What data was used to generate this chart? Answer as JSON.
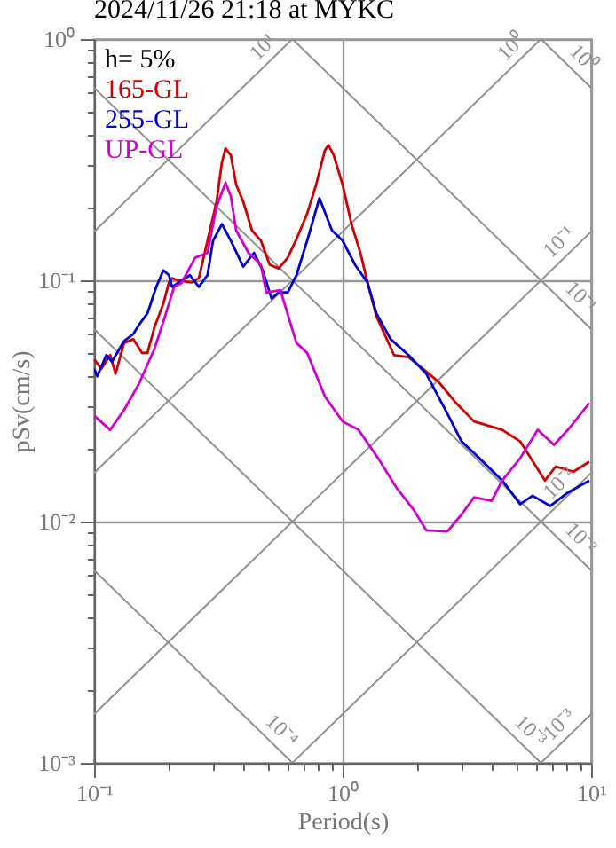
{
  "chart_data": {
    "type": "line",
    "title": "2024/11/26 21:18 at MYKC",
    "xlabel": "Period(s)",
    "ylabel": "pSv(cm/s)",
    "log": "xy",
    "grid": true,
    "xlim": [
      0.1,
      10
    ],
    "ylim": [
      0.001,
      1
    ],
    "xticks": [
      {
        "value": 0.1,
        "label": "10⁻¹"
      },
      {
        "value": 0.2,
        "label": null
      },
      {
        "value": 0.3,
        "label": null
      },
      {
        "value": 0.4,
        "label": null
      },
      {
        "value": 0.5,
        "label": null
      },
      {
        "value": 0.6,
        "label": null
      },
      {
        "value": 0.7,
        "label": null
      },
      {
        "value": 0.8,
        "label": null
      },
      {
        "value": 0.9,
        "label": null
      },
      {
        "value": 1,
        "label": "10⁰"
      },
      {
        "value": 2,
        "label": null
      },
      {
        "value": 3,
        "label": null
      },
      {
        "value": 4,
        "label": null
      },
      {
        "value": 5,
        "label": null
      },
      {
        "value": 6,
        "label": null
      },
      {
        "value": 7,
        "label": null
      },
      {
        "value": 8,
        "label": null
      },
      {
        "value": 9,
        "label": null
      },
      {
        "value": 10,
        "label": "10¹"
      }
    ],
    "yticks": [
      {
        "value": 0.001,
        "label": "10⁻³"
      },
      {
        "value": 0.002,
        "label": null
      },
      {
        "value": 0.003,
        "label": null
      },
      {
        "value": 0.004,
        "label": null
      },
      {
        "value": 0.005,
        "label": null
      },
      {
        "value": 0.006,
        "label": null
      },
      {
        "value": 0.007,
        "label": null
      },
      {
        "value": 0.008,
        "label": null
      },
      {
        "value": 0.009,
        "label": null
      },
      {
        "value": 0.01,
        "label": "10⁻²"
      },
      {
        "value": 0.02,
        "label": null
      },
      {
        "value": 0.03,
        "label": null
      },
      {
        "value": 0.04,
        "label": null
      },
      {
        "value": 0.05,
        "label": null
      },
      {
        "value": 0.06,
        "label": null
      },
      {
        "value": 0.07,
        "label": null
      },
      {
        "value": 0.08,
        "label": null
      },
      {
        "value": 0.09,
        "label": null
      },
      {
        "value": 0.1,
        "label": "10⁻¹"
      },
      {
        "value": 0.2,
        "label": null
      },
      {
        "value": 0.3,
        "label": null
      },
      {
        "value": 0.4,
        "label": null
      },
      {
        "value": 0.5,
        "label": null
      },
      {
        "value": 0.6,
        "label": null
      },
      {
        "value": 0.7,
        "label": null
      },
      {
        "value": 0.8,
        "label": null
      },
      {
        "value": 0.9,
        "label": null
      },
      {
        "value": 1,
        "label": "10⁰"
      }
    ],
    "series": [
      {
        "type": "line",
        "name": "10¹",
        "color": "#909090",
        "x": [
          0.1,
          0.628
        ],
        "values": [
          0.159,
          1
        ]
      },
      {
        "type": "line",
        "name": "10⁰",
        "color": "#909090",
        "x": [
          0.1,
          6.28
        ],
        "values": [
          0.0159,
          1
        ]
      },
      {
        "type": "line",
        "name": "10⁻¹",
        "color": "#909090",
        "x": [
          0.1,
          10
        ],
        "values": [
          0.00159,
          0.159
        ]
      },
      {
        "type": "line",
        "name": "10⁻²",
        "color": "#909090",
        "x": [
          0.628,
          10
        ],
        "values": [
          0.001,
          0.0159
        ]
      },
      {
        "type": "line",
        "name": "10⁻³",
        "color": "#909090",
        "x": [
          6.28,
          10
        ],
        "values": [
          0.001,
          0.00159
        ]
      },
      {
        "type": "line",
        "name": "10⁰",
        "color": "#909090",
        "x": [
          6.28,
          10
        ],
        "values": [
          1,
          0.628
        ]
      },
      {
        "type": "line",
        "name": "10⁻¹",
        "color": "#909090",
        "x": [
          0.628,
          10
        ],
        "values": [
          1,
          0.0628
        ]
      },
      {
        "type": "line",
        "name": "10⁻²",
        "color": "#909090",
        "x": [
          0.1,
          10
        ],
        "values": [
          0.628,
          0.00628
        ]
      },
      {
        "type": "line",
        "name": "10⁻³",
        "color": "#909090",
        "x": [
          0.1,
          6.28
        ],
        "values": [
          0.0628,
          0.001
        ]
      },
      {
        "type": "line",
        "name": "10⁻⁴",
        "color": "#909090",
        "x": [
          0.1,
          0.628
        ],
        "values": [
          0.00628,
          0.001
        ]
      },
      {
        "name": "165-GL",
        "color": "#d00000",
        "x": [
          0.1,
          0.107,
          0.116,
          0.122,
          0.132,
          0.144,
          0.156,
          0.164,
          0.175,
          0.19,
          0.2,
          0.206,
          0.217,
          0.247,
          0.264,
          0.286,
          0.311,
          0.327,
          0.338,
          0.355,
          0.373,
          0.398,
          0.432,
          0.469,
          0.509,
          0.553,
          0.601,
          0.652,
          0.72,
          0.782,
          0.849,
          0.877,
          0.921,
          1.0,
          1.086,
          1.179,
          1.259,
          1.367,
          1.61,
          1.84,
          2.1,
          2.43,
          2.86,
          3.38,
          4.39,
          5.18,
          6.52,
          7.2,
          8.49,
          9.84
        ],
        "values": [
          0.047,
          0.043,
          0.049,
          0.041,
          0.055,
          0.057,
          0.05,
          0.05,
          0.064,
          0.08,
          0.098,
          0.102,
          0.1,
          0.098,
          0.102,
          0.146,
          0.212,
          0.309,
          0.352,
          0.33,
          0.249,
          0.212,
          0.161,
          0.146,
          0.116,
          0.112,
          0.124,
          0.148,
          0.189,
          0.249,
          0.346,
          0.363,
          0.33,
          0.249,
          0.171,
          0.13,
          0.098,
          0.071,
          0.049,
          0.048,
          0.043,
          0.038,
          0.031,
          0.026,
          0.024,
          0.0215,
          0.0148,
          0.0169,
          0.0161,
          0.0177
        ]
      },
      {
        "name": "255-GL",
        "color": "#0000d0",
        "x": [
          0.1,
          0.103,
          0.112,
          0.118,
          0.132,
          0.144,
          0.151,
          0.164,
          0.178,
          0.19,
          0.2,
          0.206,
          0.243,
          0.264,
          0.286,
          0.301,
          0.327,
          0.355,
          0.398,
          0.44,
          0.477,
          0.518,
          0.553,
          0.601,
          0.652,
          0.72,
          0.807,
          0.906,
          1.0,
          1.122,
          1.259,
          1.367,
          1.56,
          1.84,
          2.17,
          2.64,
          3.01,
          3.55,
          4.39,
          5.18,
          5.81,
          6.85,
          8.07,
          9.84
        ],
        "values": [
          0.043,
          0.04,
          0.049,
          0.046,
          0.056,
          0.06,
          0.065,
          0.073,
          0.094,
          0.11,
          0.105,
          0.094,
          0.105,
          0.094,
          0.105,
          0.146,
          0.171,
          0.146,
          0.114,
          0.13,
          0.11,
          0.084,
          0.089,
          0.089,
          0.105,
          0.146,
          0.219,
          0.161,
          0.146,
          0.116,
          0.098,
          0.073,
          0.057,
          0.049,
          0.041,
          0.028,
          0.0215,
          0.0183,
          0.0148,
          0.0118,
          0.0128,
          0.0116,
          0.0132,
          0.0148
        ]
      },
      {
        "name": "UP-GL",
        "color": "#d000d0",
        "x": [
          0.1,
          0.116,
          0.132,
          0.151,
          0.175,
          0.193,
          0.21,
          0.224,
          0.255,
          0.286,
          0.311,
          0.338,
          0.355,
          0.373,
          0.418,
          0.469,
          0.493,
          0.562,
          0.652,
          0.72,
          0.849,
          1.0,
          1.159,
          1.39,
          1.64,
          1.93,
          2.17,
          2.64,
          3.01,
          3.38,
          3.98,
          4.39,
          5.18,
          6.1,
          7.08,
          8.07,
          9.84
        ],
        "values": [
          0.0275,
          0.024,
          0.029,
          0.037,
          0.052,
          0.071,
          0.094,
          0.097,
          0.124,
          0.13,
          0.202,
          0.254,
          0.223,
          0.161,
          0.13,
          0.116,
          0.089,
          0.091,
          0.055,
          0.05,
          0.033,
          0.026,
          0.024,
          0.0183,
          0.0139,
          0.0112,
          0.0092,
          0.0091,
          0.0107,
          0.0126,
          0.0122,
          0.0148,
          0.0183,
          0.024,
          0.0208,
          0.024,
          0.031
        ]
      }
    ],
    "annotations": [
      "h= 5%"
    ]
  }
}
